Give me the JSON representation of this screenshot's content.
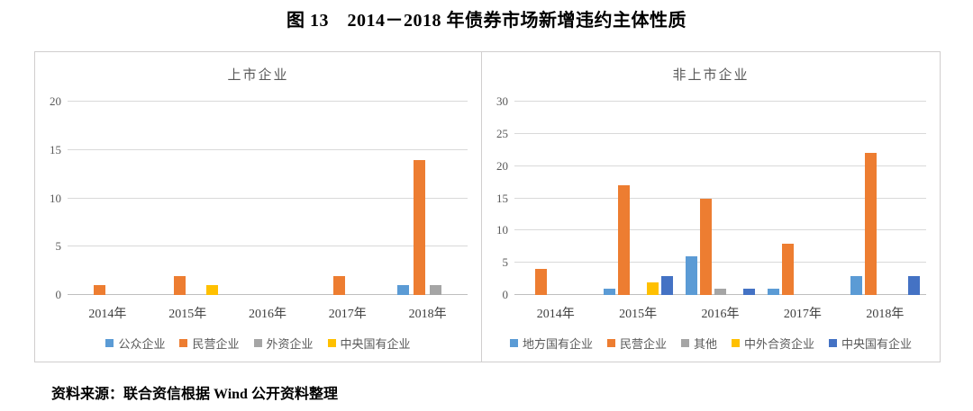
{
  "figure": {
    "title": "图 13　2014－2018 年债券市场新增违约主体性质",
    "source": "资料来源：联合资信根据 Wind 公开资料整理"
  },
  "chart_data": [
    {
      "type": "bar",
      "title": "上市企业",
      "categories": [
        "2014年",
        "2015年",
        "2016年",
        "2017年",
        "2018年"
      ],
      "series": [
        {
          "name": "公众企业",
          "color": "#5B9BD5",
          "values": [
            0,
            0,
            0,
            0,
            1
          ]
        },
        {
          "name": "民营企业",
          "color": "#ED7D31",
          "values": [
            1,
            2,
            0,
            2,
            14
          ]
        },
        {
          "name": "外资企业",
          "color": "#A5A5A5",
          "values": [
            0,
            0,
            0,
            0,
            1
          ]
        },
        {
          "name": "中央国有企业",
          "color": "#FFC000",
          "values": [
            0,
            1,
            0,
            0,
            0
          ]
        }
      ],
      "ylim": [
        0,
        20
      ],
      "yticks": [
        0,
        5,
        10,
        15,
        20
      ],
      "grid": true,
      "legend_position": "bottom"
    },
    {
      "type": "bar",
      "title": "非上市企业",
      "categories": [
        "2014年",
        "2015年",
        "2016年",
        "2017年",
        "2018年"
      ],
      "series": [
        {
          "name": "地方国有企业",
          "color": "#5B9BD5",
          "values": [
            0,
            1,
            6,
            1,
            3
          ]
        },
        {
          "name": "民营企业",
          "color": "#ED7D31",
          "values": [
            4,
            17,
            15,
            8,
            22
          ]
        },
        {
          "name": "其他",
          "color": "#A5A5A5",
          "values": [
            0,
            0,
            1,
            0,
            0
          ]
        },
        {
          "name": "中外合资企业",
          "color": "#FFC000",
          "values": [
            0,
            2,
            0,
            0,
            0
          ]
        },
        {
          "name": "中央国有企业",
          "color": "#4472C4",
          "values": [
            0,
            3,
            1,
            0,
            3
          ]
        }
      ],
      "ylim": [
        0,
        30
      ],
      "yticks": [
        0,
        5,
        10,
        15,
        20,
        25,
        30
      ],
      "grid": true,
      "legend_position": "bottom"
    }
  ]
}
